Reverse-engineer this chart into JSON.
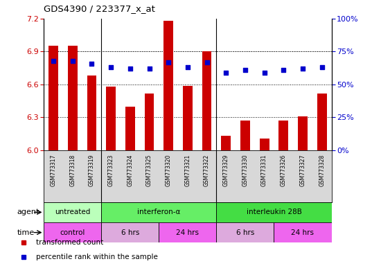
{
  "title": "GDS4390 / 223377_x_at",
  "samples": [
    "GSM773317",
    "GSM773318",
    "GSM773319",
    "GSM773323",
    "GSM773324",
    "GSM773325",
    "GSM773320",
    "GSM773321",
    "GSM773322",
    "GSM773329",
    "GSM773330",
    "GSM773331",
    "GSM773326",
    "GSM773327",
    "GSM773328"
  ],
  "red_values": [
    6.95,
    6.95,
    6.68,
    6.58,
    6.4,
    6.52,
    7.18,
    6.59,
    6.9,
    6.13,
    6.27,
    6.11,
    6.27,
    6.31,
    6.52
  ],
  "blue_values": [
    68,
    68,
    66,
    63,
    62,
    62,
    67,
    63,
    67,
    59,
    61,
    59,
    61,
    62,
    63
  ],
  "ylim_left": [
    6.0,
    7.2
  ],
  "ylim_right": [
    0,
    100
  ],
  "yticks_left": [
    6.0,
    6.3,
    6.6,
    6.9,
    7.2
  ],
  "yticks_right": [
    0,
    25,
    50,
    75,
    100
  ],
  "agent_groups": [
    {
      "label": "untreated",
      "start": 0,
      "end": 3,
      "color": "#bbffbb"
    },
    {
      "label": "interferon-α",
      "start": 3,
      "end": 9,
      "color": "#66ee66"
    },
    {
      "label": "interleukin 28B",
      "start": 9,
      "end": 15,
      "color": "#44dd44"
    }
  ],
  "time_groups": [
    {
      "label": "control",
      "start": 0,
      "end": 3,
      "color": "#ee66ee"
    },
    {
      "label": "6 hrs",
      "start": 3,
      "end": 6,
      "color": "#ddaadd"
    },
    {
      "label": "24 hrs",
      "start": 6,
      "end": 9,
      "color": "#ee66ee"
    },
    {
      "label": "6 hrs",
      "start": 9,
      "end": 12,
      "color": "#ddaadd"
    },
    {
      "label": "24 hrs",
      "start": 12,
      "end": 15,
      "color": "#ee66ee"
    }
  ],
  "group_separators": [
    2.5,
    8.5
  ],
  "bar_color": "#cc0000",
  "dot_color": "#0000cc",
  "background_color": "#ffffff",
  "names_bg_color": "#d8d8d8",
  "tick_color_left": "#cc0000",
  "tick_color_right": "#0000cc",
  "bar_width": 0.5,
  "dot_size": 18,
  "legend_items": [
    {
      "label": "transformed count",
      "color": "#cc0000"
    },
    {
      "label": "percentile rank within the sample",
      "color": "#0000cc"
    }
  ]
}
